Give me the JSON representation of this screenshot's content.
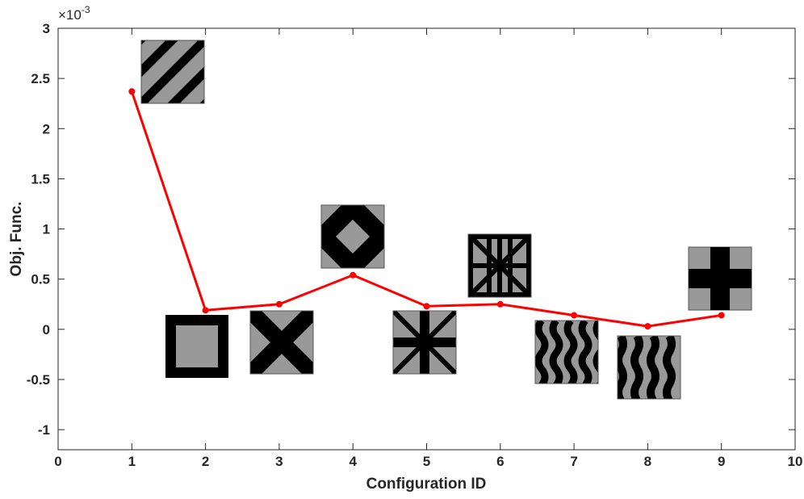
{
  "chart_data": {
    "type": "line",
    "xlabel": "Configuration ID",
    "ylabel": "Obj. Func.",
    "y_multiplier": "×10",
    "y_multiplier_exponent": "-3",
    "x": [
      1,
      2,
      3,
      4,
      5,
      6,
      7,
      8,
      9
    ],
    "values": [
      2.37,
      0.19,
      0.25,
      0.54,
      0.23,
      0.25,
      0.14,
      0.03,
      0.14
    ],
    "color": "#ff0000",
    "xlim": [
      0,
      10
    ],
    "ylim": [
      -1.2,
      3
    ],
    "xticks": [
      0,
      1,
      2,
      3,
      4,
      5,
      6,
      7,
      8,
      9,
      10
    ],
    "yticks": [
      -1,
      -0.5,
      0,
      0.5,
      1,
      1.5,
      2,
      2.5,
      3
    ],
    "grid": false
  }
}
